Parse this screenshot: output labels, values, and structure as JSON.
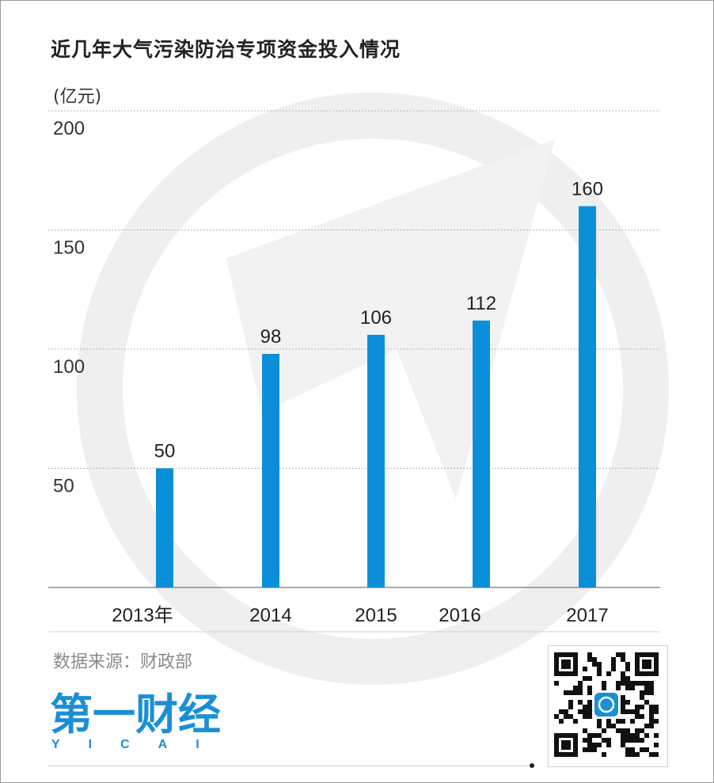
{
  "title": "近几年大气污染防治专项资金投入情况",
  "unit_label": "(亿元)",
  "source": "数据来源：财政部",
  "brand": {
    "name": "第一财经",
    "subtitle": "YICAI"
  },
  "colors": {
    "bar": "#0b8fd9",
    "grid": "#b5b5b5",
    "watermark": "#efefef",
    "brand": "#1a8fd6"
  },
  "chart_data": {
    "type": "bar",
    "title": "近几年大气污染防治专项资金投入情况",
    "ylabel": "(亿元)",
    "xlabel": "",
    "categories": [
      "2013年",
      "2014",
      "2015",
      "2016",
      "2017"
    ],
    "values": [
      50,
      98,
      106,
      112,
      160
    ],
    "ylim": [
      0,
      200
    ],
    "yticks": [
      50,
      100,
      150,
      200
    ],
    "grid": true,
    "data_labels": [
      "50",
      "98",
      "106",
      "112",
      "160"
    ]
  }
}
